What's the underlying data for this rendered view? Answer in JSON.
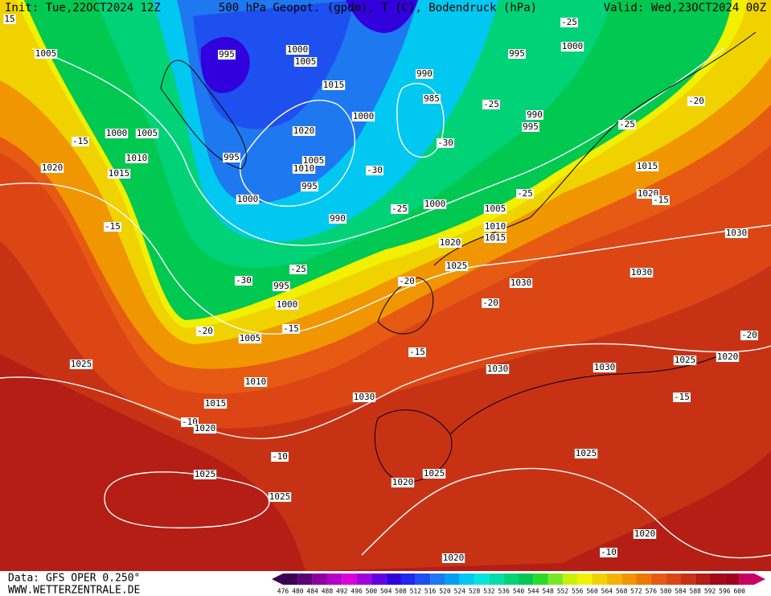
{
  "header": {
    "init": "Init: Tue,22OCT2024 12Z",
    "title": "500 hPa Geopot. (gpdm), T (C), Bodendruck (hPa)",
    "valid": "Valid: Wed,23OCT2024 00Z"
  },
  "footer": {
    "data": "Data: GFS OPER 0.250°",
    "site": "WWW.WETTERZENTRALE.DE"
  },
  "colorbar": {
    "ticks": [
      476,
      480,
      484,
      488,
      492,
      496,
      500,
      504,
      508,
      512,
      516,
      520,
      524,
      528,
      532,
      536,
      540,
      544,
      548,
      552,
      556,
      560,
      564,
      568,
      572,
      576,
      580,
      584,
      588,
      592,
      596,
      600
    ],
    "colors": [
      "#3c0050",
      "#5a0078",
      "#8c00a0",
      "#b400c8",
      "#dc00dc",
      "#a000dc",
      "#6400e6",
      "#3200dc",
      "#1e28f0",
      "#1e50f0",
      "#1e78f0",
      "#00a0f0",
      "#00c8f0",
      "#00e6dc",
      "#00dcaa",
      "#00d278",
      "#00c850",
      "#28dc28",
      "#78e628",
      "#c8f000",
      "#f0f000",
      "#f0d200",
      "#f0b400",
      "#f09600",
      "#eb7800",
      "#e65a14",
      "#dc4614",
      "#c83214",
      "#b41e14",
      "#a00a14",
      "#a0001e",
      "#c80064"
    ]
  },
  "map_labels": [
    "15",
    "1005",
    "995",
    "1000",
    "1005",
    "1015",
    "1000",
    "990",
    "985",
    "995",
    "1000",
    "-25",
    "1000",
    "1005",
    "1010",
    "-15",
    "1020",
    "1015",
    "995",
    "1020",
    "1005",
    "1010",
    "995",
    "-30",
    "-30",
    "-25",
    "990",
    "995",
    "-25",
    "-20",
    "1000",
    "990",
    "-25",
    "1000",
    "1005",
    "1010",
    "1015",
    "1020",
    "-25",
    "1015",
    "1020",
    "-15",
    "-15",
    "1030",
    "-25",
    "-30",
    "995",
    "1025",
    "1030",
    "1030",
    "1000",
    "-20",
    "-20",
    "-20",
    "-15",
    "1005",
    "-15",
    "-20",
    "1025",
    "1010",
    "1030",
    "1030",
    "1025",
    "1020",
    "1030",
    "-15",
    "1015",
    "-10",
    "1020",
    "-10",
    "1025",
    "1025",
    "1025",
    "1020",
    "1025",
    "1020",
    "-10",
    "1020"
  ]
}
